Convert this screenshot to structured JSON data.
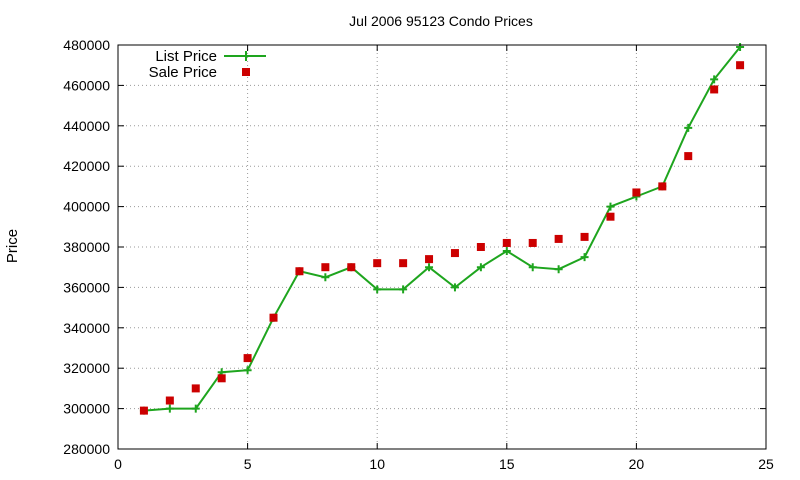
{
  "chart_data": {
    "type": "line",
    "title": "Jul 2006 95123 Condo Prices",
    "xlabel": "",
    "ylabel": "Price",
    "xlim": [
      0,
      25
    ],
    "ylim": [
      280000,
      480000
    ],
    "xticks": [
      0,
      5,
      10,
      15,
      20,
      25
    ],
    "yticks": [
      280000,
      300000,
      320000,
      340000,
      360000,
      380000,
      400000,
      420000,
      440000,
      460000,
      480000
    ],
    "grid": true,
    "legend_position": "top-left",
    "x": [
      1,
      2,
      3,
      4,
      5,
      6,
      7,
      8,
      9,
      10,
      11,
      12,
      13,
      14,
      15,
      16,
      17,
      18,
      19,
      20,
      21,
      22,
      23,
      24
    ],
    "series": [
      {
        "name": "List Price",
        "style": "line-with-plus-markers",
        "color": "#1ea51e",
        "values": [
          299000,
          300000,
          300000,
          318000,
          319000,
          345000,
          368000,
          365000,
          370000,
          359000,
          359000,
          370000,
          360000,
          370000,
          378000,
          370000,
          369000,
          375000,
          400000,
          405000,
          410000,
          439000,
          463000,
          479000
        ]
      },
      {
        "name": "Sale Price",
        "style": "square-markers",
        "color": "#cc0000",
        "values": [
          299000,
          304000,
          310000,
          315000,
          325000,
          345000,
          368000,
          370000,
          370000,
          372000,
          372000,
          374000,
          377000,
          380000,
          382000,
          382000,
          384000,
          385000,
          395000,
          407000,
          410000,
          425000,
          458000,
          470000
        ]
      }
    ]
  }
}
